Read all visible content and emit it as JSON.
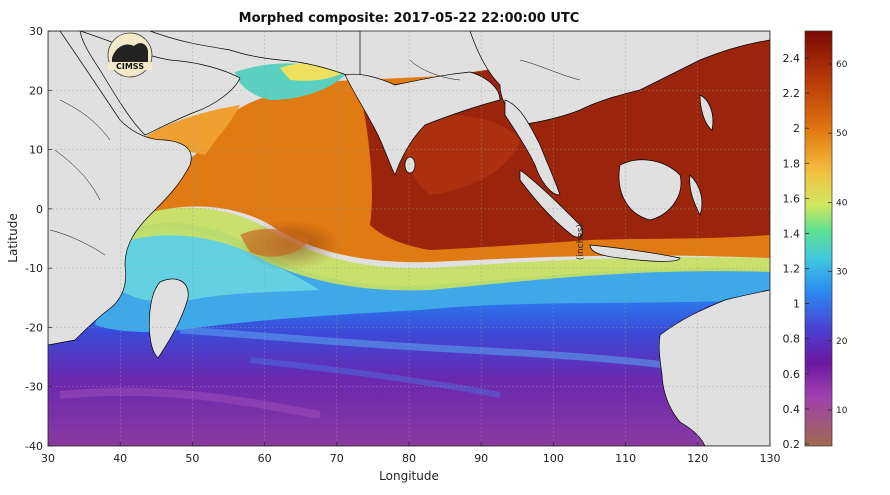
{
  "title": "Morphed composite: 2017-05-22 22:00:00 UTC",
  "xlabel": "Longitude",
  "ylabel": "Latitude",
  "xticks": [
    30,
    40,
    50,
    60,
    70,
    80,
    90,
    100,
    110,
    120,
    130
  ],
  "yticks": [
    30,
    20,
    10,
    0,
    -10,
    -20,
    -30,
    -40
  ],
  "colorbar": {
    "left_ticks": [
      "2.4",
      "2.2",
      "2",
      "1.8",
      "1.6",
      "1.4",
      "1.2",
      "1",
      "0.8",
      "0.6",
      "0.4",
      "0.2"
    ],
    "right_ticks": [
      "60",
      "50",
      "40",
      "30",
      "20",
      "10"
    ],
    "inner_label": "(inches)"
  },
  "logo": {
    "text": "CIMSS"
  },
  "colors": {
    "land": "#e0e0e0",
    "ocean_high": "#8b1a0a",
    "ocean_mid": "#e07a10",
    "ocean_low": "#3a2a9a"
  }
}
